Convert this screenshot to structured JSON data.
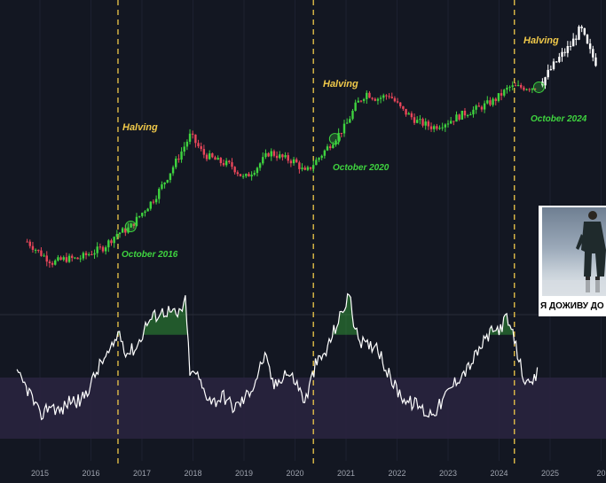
{
  "annotations": {
    "halving_label": "Halving",
    "halving_2016": "Halving",
    "halving_2020": "Halving",
    "halving_2024": "Halving",
    "oct_2016": "October 2016",
    "oct_2020": "October 2020",
    "oct_2024": "October 2024"
  },
  "meme": {
    "caption": "Я ДОЖИВУ ДО"
  },
  "colors": {
    "up": "#3fd43f",
    "down": "#e8465a",
    "projection": "#ffffff",
    "halving_line": "#f0c94a",
    "oscillator": "#ffffff",
    "band": "#2a2540",
    "background": "#131722"
  },
  "chart_data": [
    {
      "type": "line",
      "subtype": "candlestick",
      "xlabel": "",
      "ylabel": "",
      "x_ticks": [
        "2015",
        "2016",
        "2017",
        "2018",
        "2019",
        "2020",
        "2021",
        "2022",
        "2023",
        "2024",
        "2025",
        "20"
      ],
      "x": [
        2014.75,
        2015.0,
        2015.25,
        2015.5,
        2015.75,
        2016.0,
        2016.25,
        2016.5,
        2016.75,
        2017.0,
        2017.25,
        2017.5,
        2017.75,
        2017.95,
        2018.2,
        2018.5,
        2018.75,
        2019.0,
        2019.25,
        2019.5,
        2019.75,
        2020.0,
        2020.2,
        2020.5,
        2020.75,
        2021.0,
        2021.2,
        2021.4,
        2021.6,
        2021.85,
        2022.1,
        2022.4,
        2022.7,
        2023.0,
        2023.3,
        2023.6,
        2023.9,
        2024.2,
        2024.5,
        2024.75
      ],
      "close_level": [
        0.36,
        0.3,
        0.25,
        0.27,
        0.27,
        0.3,
        0.33,
        0.4,
        0.43,
        0.51,
        0.59,
        0.7,
        0.82,
        0.92,
        0.82,
        0.78,
        0.76,
        0.69,
        0.75,
        0.83,
        0.8,
        0.78,
        0.72,
        0.81,
        0.89,
        0.97,
        1.08,
        1.14,
        1.11,
        1.13,
        1.05,
        0.99,
        0.96,
        0.99,
        1.03,
        1.06,
        1.1,
        1.17,
        1.17,
        1.17
      ],
      "projection": {
        "x": [
          2024.85,
          2025.0,
          2025.2,
          2025.4,
          2025.6,
          2025.75,
          2025.9
        ],
        "close_level": [
          1.2,
          1.26,
          1.33,
          1.39,
          1.48,
          1.37,
          1.3
        ]
      },
      "events": [
        {
          "label": "Halving",
          "x": 2016.53
        },
        {
          "label": "Halving",
          "x": 2020.36
        },
        {
          "label": "Halving",
          "x": 2024.3
        },
        {
          "label": "October 2016",
          "x": 2016.78
        },
        {
          "label": "October 2020",
          "x": 2020.78
        },
        {
          "label": "October 2024",
          "x": 2024.78
        }
      ]
    },
    {
      "type": "line",
      "subtype": "oscillator",
      "xlabel": "",
      "ylabel": "",
      "x": [
        2014.55,
        2014.8,
        2015.0,
        2015.2,
        2015.4,
        2015.6,
        2015.8,
        2016.0,
        2016.2,
        2016.4,
        2016.55,
        2016.7,
        2016.9,
        2017.1,
        2017.3,
        2017.5,
        2017.7,
        2017.85,
        2017.95,
        2018.05,
        2018.2,
        2018.4,
        2018.6,
        2018.8,
        2019.0,
        2019.2,
        2019.4,
        2019.6,
        2019.8,
        2020.0,
        2020.2,
        2020.4,
        2020.6,
        2020.8,
        2020.95,
        2021.05,
        2021.2,
        2021.4,
        2021.6,
        2021.8,
        2022.0,
        2022.2,
        2022.4,
        2022.6,
        2022.8,
        2023.0,
        2023.2,
        2023.4,
        2023.6,
        2023.8,
        2024.0,
        2024.15,
        2024.3,
        2024.45,
        2024.6,
        2024.75
      ],
      "values": [
        0.52,
        0.38,
        0.18,
        0.28,
        0.22,
        0.32,
        0.3,
        0.45,
        0.62,
        0.72,
        0.88,
        0.7,
        0.75,
        0.95,
        1.02,
        1.05,
        1.0,
        1.12,
        0.5,
        0.55,
        0.4,
        0.3,
        0.35,
        0.25,
        0.32,
        0.45,
        0.68,
        0.42,
        0.55,
        0.48,
        0.3,
        0.6,
        0.7,
        0.92,
        1.05,
        1.2,
        0.85,
        0.75,
        0.78,
        0.55,
        0.4,
        0.3,
        0.28,
        0.2,
        0.25,
        0.38,
        0.5,
        0.58,
        0.72,
        0.85,
        0.9,
        0.98,
        0.8,
        0.55,
        0.4,
        0.53
      ],
      "band": [
        0.25,
        0.75
      ],
      "threshold": 0.85
    }
  ]
}
